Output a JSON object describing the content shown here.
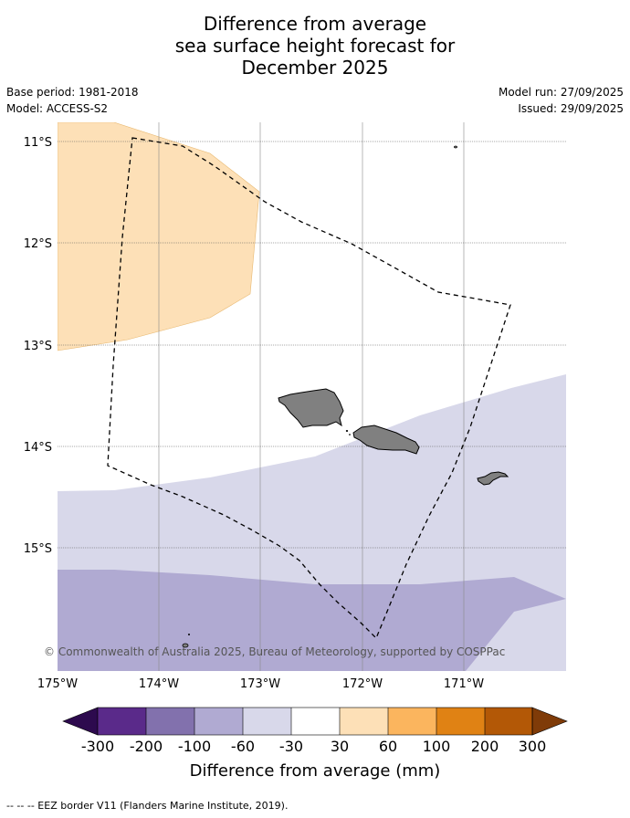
{
  "title_lines": [
    "Difference from average",
    "sea surface height forecast for",
    "December 2025"
  ],
  "meta": {
    "base_period": "Base period: 1981-2018",
    "model": "Model: ACCESS-S2",
    "model_run": "Model run: 27/09/2025",
    "issued": "Issued: 29/09/2025"
  },
  "map": {
    "lat_labels": [
      "11°S",
      "12°S",
      "13°S",
      "14°S",
      "15°S"
    ],
    "lon_labels": [
      "175°W",
      "174°W",
      "173°W",
      "172°W",
      "171°W"
    ],
    "copyright": "© Commonwealth of Australia 2025, Bureau of Meteorology, supported by COSPPac"
  },
  "legend": {
    "tick_labels": [
      "-300",
      "-200",
      "-100",
      "-60",
      "-30",
      "30",
      "60",
      "100",
      "200",
      "300"
    ],
    "bin_colors": [
      "#2d0a4e",
      "#5a2a8a",
      "#8271ad",
      "#b0aad2",
      "#d8d8ea",
      "#ffffff",
      "#fde0b7",
      "#fbb55e",
      "#e08214",
      "#b35806",
      "#7f3b08"
    ],
    "label": "Difference from average (mm)"
  },
  "footer": "--  --  -- EEZ border V11 (Flanders Marine Institute, 2019)."
}
